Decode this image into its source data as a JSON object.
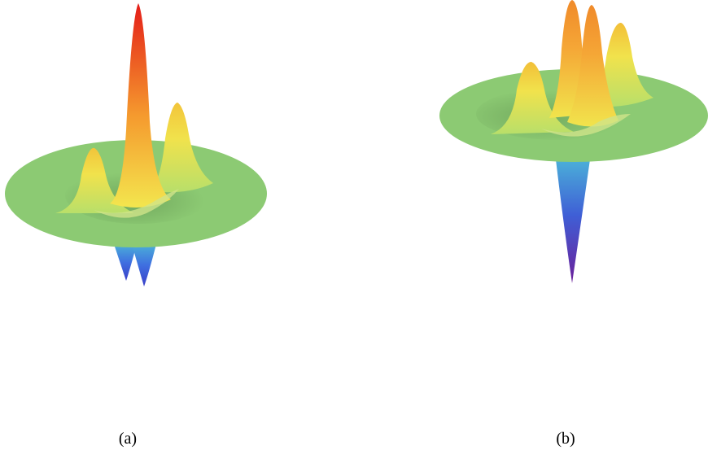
{
  "panels": [
    {
      "caption": "(a)"
    },
    {
      "caption": "(b)"
    }
  ],
  "colors": {
    "disk": "#8cca73",
    "peak_red": "#e8261a",
    "peak_orange": "#f59a2e",
    "peak_yellow": "#f2e64c",
    "trough_blue": "#3f5fd6",
    "trough_purple": "#6b1f9a"
  }
}
